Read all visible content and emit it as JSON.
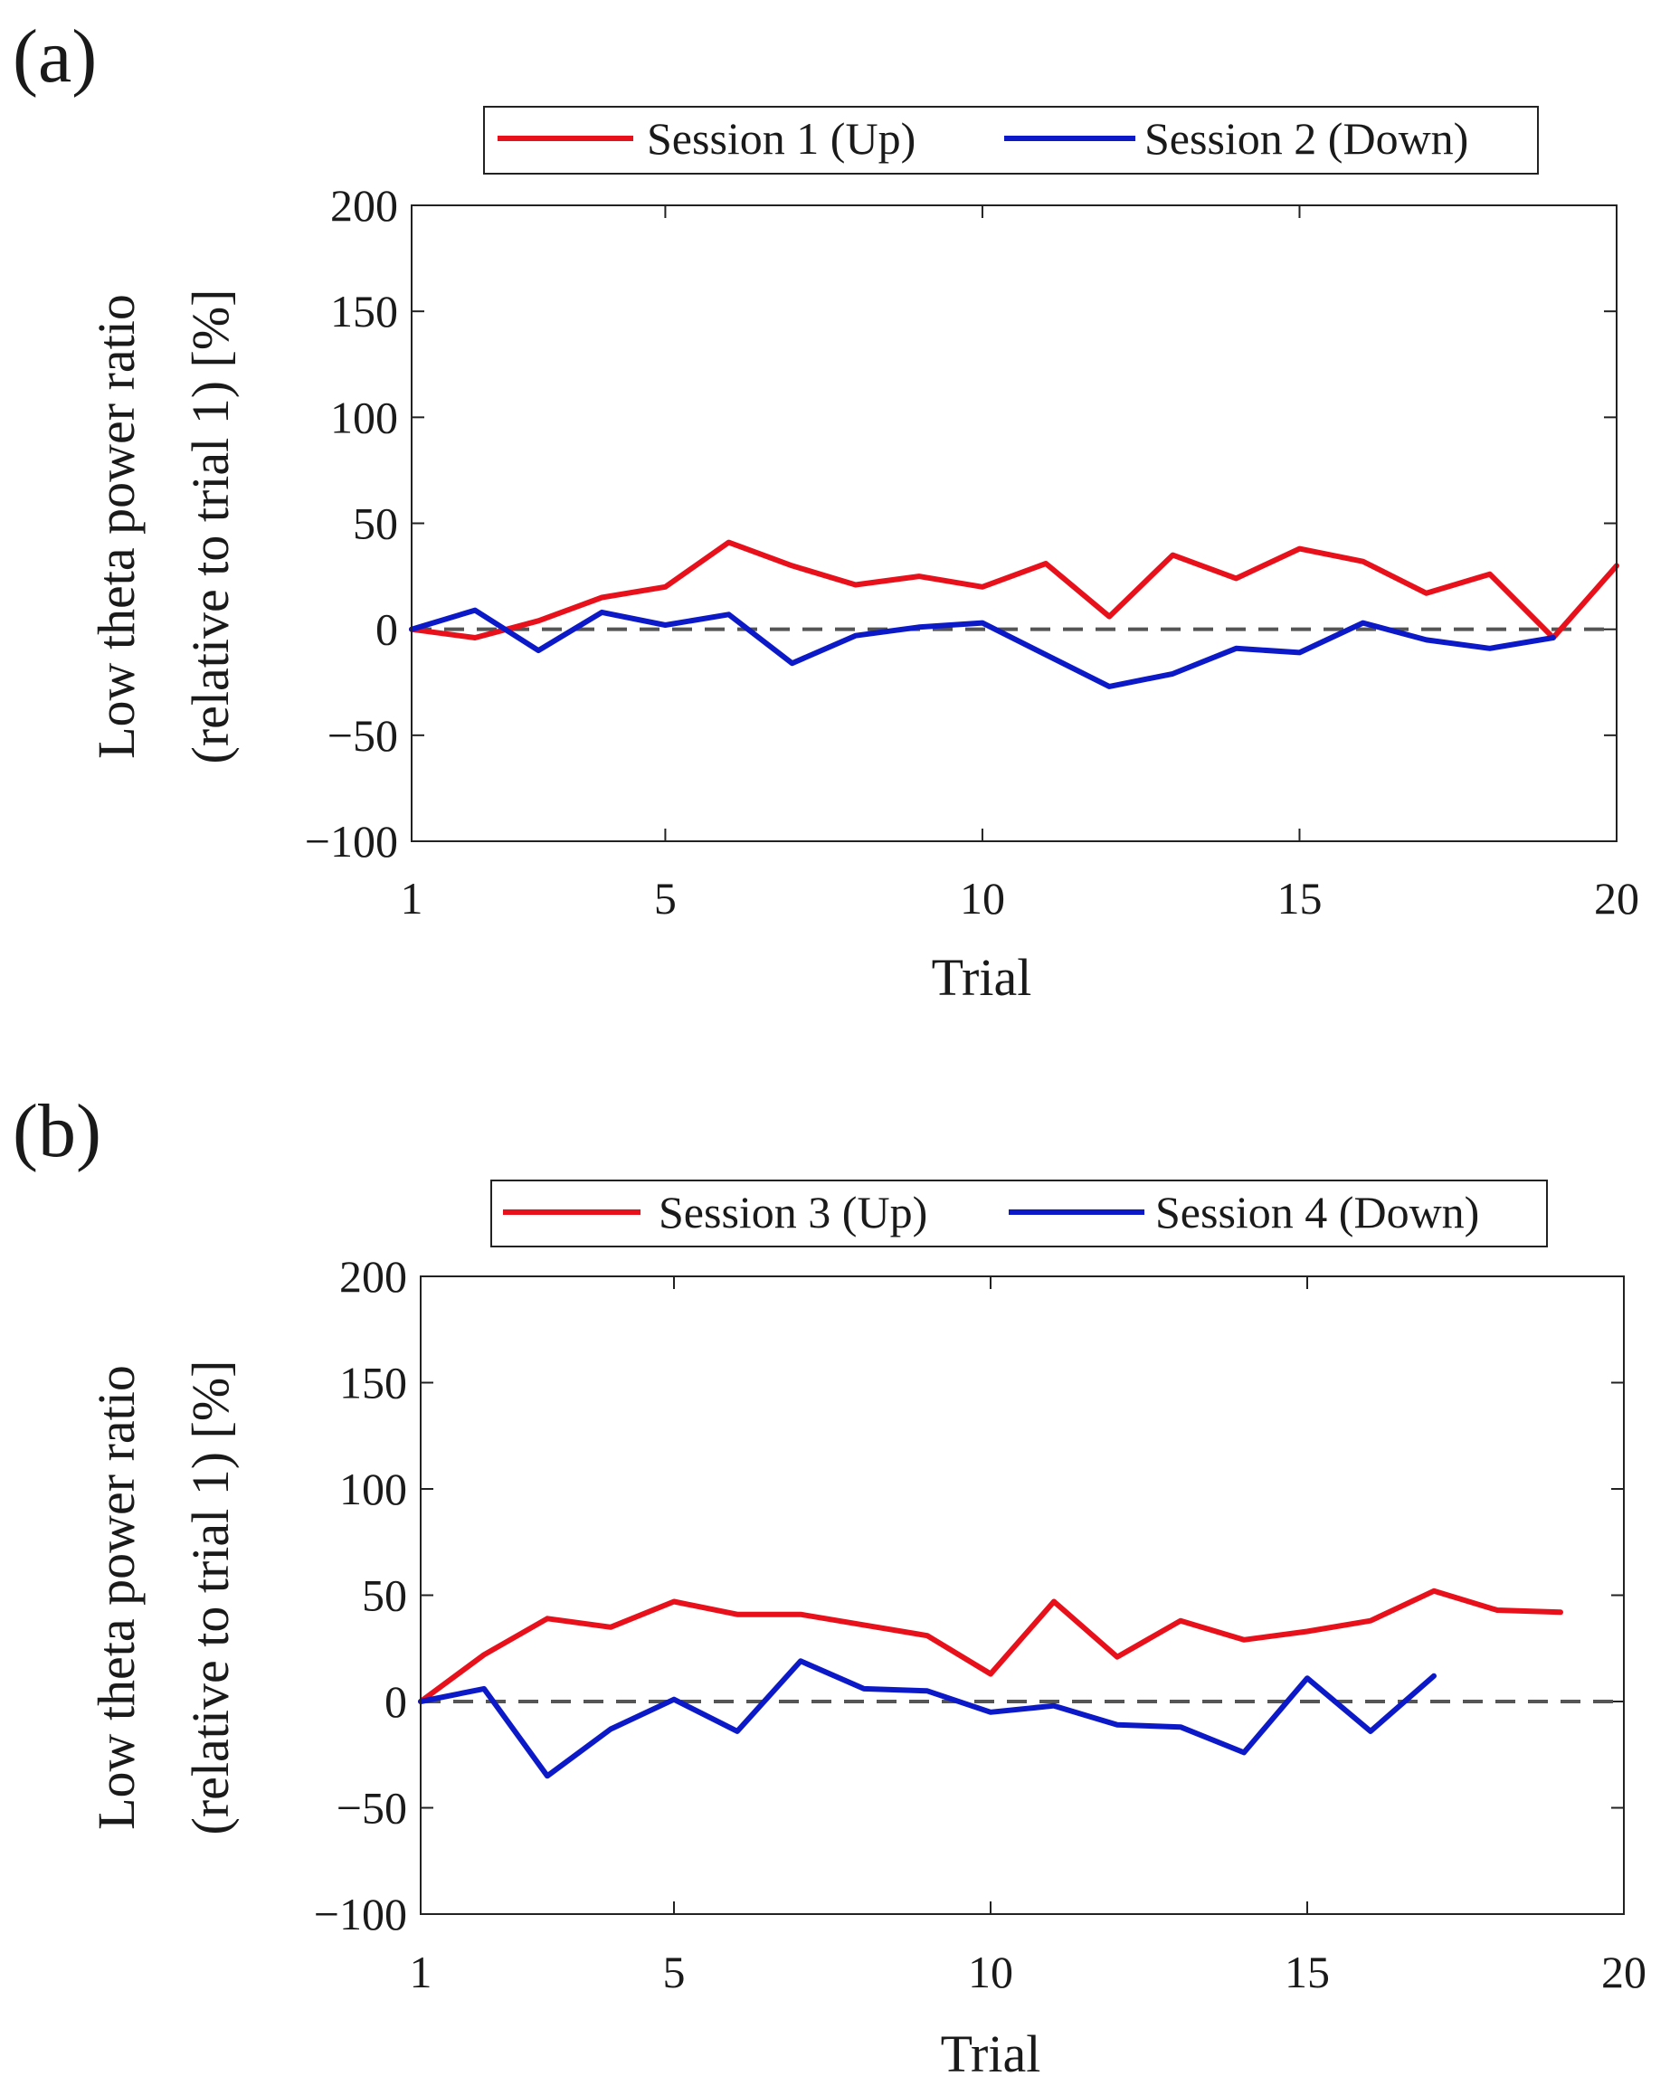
{
  "chart_data": [
    {
      "panel_label": "(a)",
      "type": "line",
      "title": "",
      "xlabel": "Trial",
      "ylabel_lines": [
        "Low theta power ratio",
        "(relative to trial 1) [%]"
      ],
      "xlim": [
        1,
        20
      ],
      "ylim": [
        -100,
        200
      ],
      "xticks": [
        1,
        5,
        10,
        15,
        20
      ],
      "xtick_labels": [
        "1",
        "5",
        "10",
        "15",
        "20"
      ],
      "yticks": [
        200,
        150,
        100,
        50,
        0,
        -50,
        -100
      ],
      "ytick_labels": [
        "200",
        "150",
        "100",
        "50",
        "0",
        "−50",
        "−100"
      ],
      "reference_line": {
        "y": 0,
        "style": "dashed",
        "color": "#555555"
      },
      "legend_position": "top",
      "series": [
        {
          "name": "Session 1 (Up)",
          "color": "#e8111b",
          "x": [
            1,
            2,
            3,
            4,
            5,
            6,
            7,
            8,
            9,
            10,
            11,
            12,
            13,
            14,
            15,
            16,
            17,
            18,
            19,
            20
          ],
          "values": [
            0,
            -4,
            4,
            15,
            20,
            41,
            30,
            21,
            25,
            20,
            31,
            6,
            35,
            24,
            38,
            32,
            17,
            26,
            -4,
            30
          ]
        },
        {
          "name": "Session 2 (Down)",
          "color": "#0c19c8",
          "x": [
            1,
            2,
            3,
            4,
            5,
            6,
            7,
            8,
            9,
            10,
            11,
            12,
            13,
            14,
            15,
            16,
            17,
            18,
            19
          ],
          "values": [
            0,
            9,
            -10,
            8,
            2,
            7,
            -16,
            -3,
            1,
            3,
            -12,
            -27,
            -21,
            -9,
            -11,
            3,
            -5,
            -9,
            -4
          ]
        }
      ]
    },
    {
      "panel_label": "(b)",
      "type": "line",
      "title": "",
      "xlabel": "Trial",
      "ylabel_lines": [
        "Low theta power ratio",
        "(relative to trial 1) [%]"
      ],
      "xlim": [
        1,
        20
      ],
      "ylim": [
        -100,
        200
      ],
      "xticks": [
        1,
        5,
        10,
        15,
        20
      ],
      "xtick_labels": [
        "1",
        "5",
        "10",
        "15",
        "20"
      ],
      "yticks": [
        200,
        150,
        100,
        50,
        0,
        -50,
        -100
      ],
      "ytick_labels": [
        "200",
        "150",
        "100",
        "50",
        "0",
        "−50",
        "−100"
      ],
      "reference_line": {
        "y": 0,
        "style": "dashed",
        "color": "#555555"
      },
      "legend_position": "top",
      "series": [
        {
          "name": "Session 3 (Up)",
          "color": "#e8111b",
          "x": [
            1,
            2,
            3,
            4,
            5,
            6,
            7,
            8,
            9,
            10,
            11,
            12,
            13,
            14,
            15,
            16,
            17,
            18,
            19
          ],
          "values": [
            0,
            22,
            39,
            35,
            47,
            41,
            41,
            36,
            31,
            13,
            47,
            21,
            38,
            29,
            33,
            38,
            52,
            43,
            42
          ]
        },
        {
          "name": "Session 4 (Down)",
          "color": "#0c19c8",
          "x": [
            1,
            2,
            3,
            4,
            5,
            6,
            7,
            8,
            9,
            10,
            11,
            12,
            13,
            14,
            15,
            16,
            17
          ],
          "values": [
            0,
            6,
            -35,
            -13,
            1,
            -14,
            19,
            6,
            5,
            -5,
            -2,
            -11,
            -12,
            -24,
            11,
            -14,
            12
          ]
        }
      ]
    }
  ]
}
